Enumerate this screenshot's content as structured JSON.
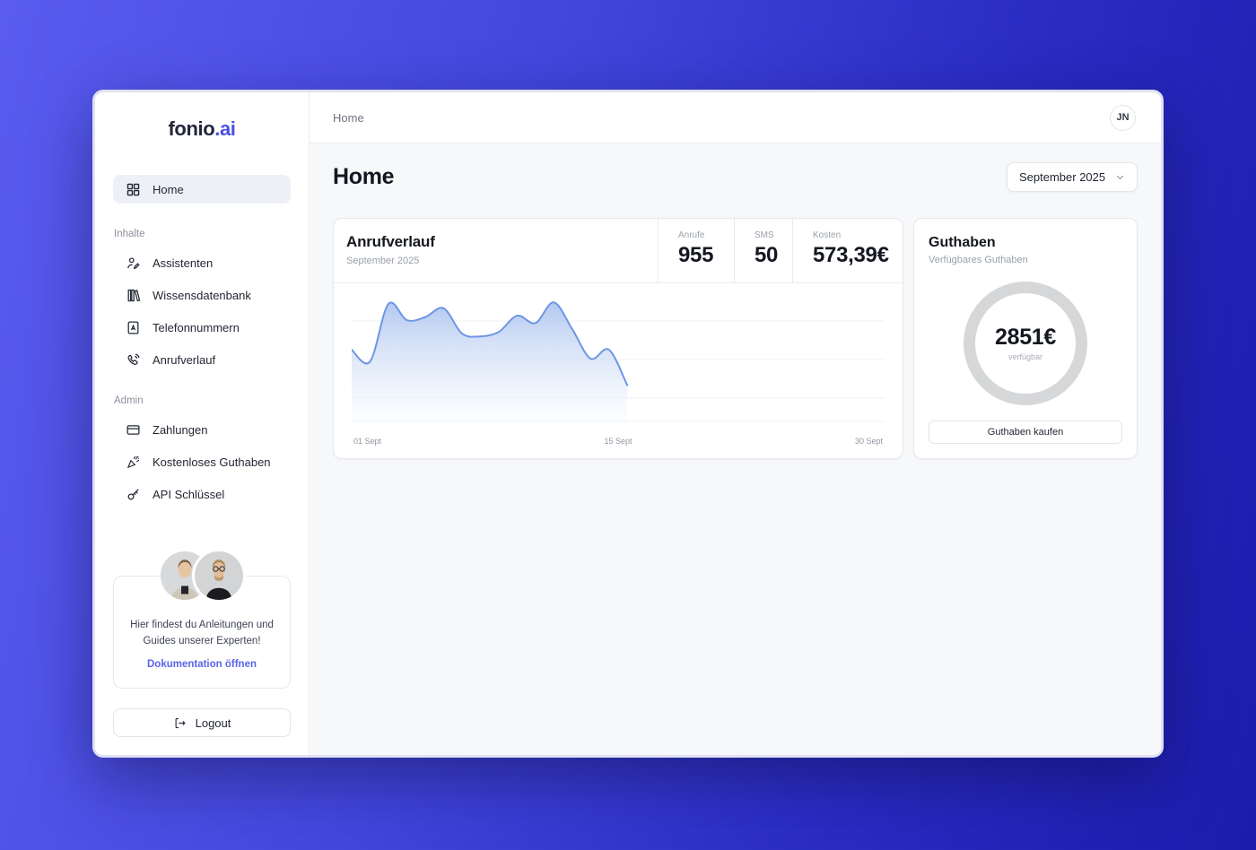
{
  "logo": {
    "primary": "fonio",
    "accent": ".ai"
  },
  "topbar": {
    "breadcrumb": "Home",
    "avatar_initials": "JN"
  },
  "sidebar": {
    "home": {
      "label": "Home",
      "icon": "grid-icon",
      "active": true
    },
    "sections": [
      {
        "label": "Inhalte",
        "items": [
          {
            "label": "Assistenten",
            "icon": "assistant-person-icon"
          },
          {
            "label": "Wissensdatenbank",
            "icon": "books-icon"
          },
          {
            "label": "Telefonnummern",
            "icon": "contact-book-icon"
          },
          {
            "label": "Anrufverlauf",
            "icon": "phone-call-icon"
          }
        ]
      },
      {
        "label": "Admin",
        "items": [
          {
            "label": "Zahlungen",
            "icon": "credit-card-icon"
          },
          {
            "label": "Kostenloses Guthaben",
            "icon": "party-popper-icon"
          },
          {
            "label": "API Schlüssel",
            "icon": "key-icon"
          }
        ]
      }
    ],
    "docs_card": {
      "message": "Hier findest du Anleitungen und Guides unserer Experten!",
      "link_label": "Dokumentation öffnen"
    },
    "logout_label": "Logout"
  },
  "main": {
    "title": "Home",
    "period_selector": {
      "value": "September 2025",
      "icon": "chevron-down-icon"
    },
    "call_card": {
      "title": "Anrufverlauf",
      "subtitle": "September 2025",
      "stats": [
        {
          "label": "Anrufe",
          "value": "955"
        },
        {
          "label": "SMS",
          "value": "50"
        },
        {
          "label": "Kosten",
          "value": "573,39€"
        }
      ]
    },
    "balance_card": {
      "title": "Guthaben",
      "subtitle": "Verfügbares Guthaben",
      "amount": "2851€",
      "amount_caption": "verfügbar",
      "button_label": "Guthaben kaufen"
    }
  },
  "chart_data": {
    "type": "area",
    "title": "Anrufverlauf",
    "subtitle": "September 2025",
    "xlabel": "",
    "ylabel": "",
    "x": [
      1,
      2,
      3,
      4,
      5,
      6,
      7,
      8,
      9,
      10,
      11,
      12,
      13,
      14,
      15,
      16
    ],
    "values": [
      52,
      44,
      83,
      72,
      74,
      80,
      63,
      61,
      64,
      75,
      70,
      84,
      66,
      46,
      52,
      28
    ],
    "x_range_days": [
      1,
      30
    ],
    "ylim": [
      0,
      92
    ],
    "x_tick_labels": [
      "01 Sept",
      "15 Sept",
      "30 Sept"
    ],
    "grid": "horizontal-light",
    "legend": false,
    "line_color": "#6d96e3",
    "fill_top_color": "#b0c7f0",
    "fill_bottom_color": "#eef3fb"
  },
  "colors": {
    "page_gradient_start": "#5a5cf0",
    "page_gradient_end": "#1b1cab",
    "accent_blue": "#4a51e0",
    "link_blue": "#5a64e8",
    "active_item_bg": "#eef0f7",
    "ring_gray": "#d6d7d9",
    "content_bg": "#f7f8fa"
  }
}
